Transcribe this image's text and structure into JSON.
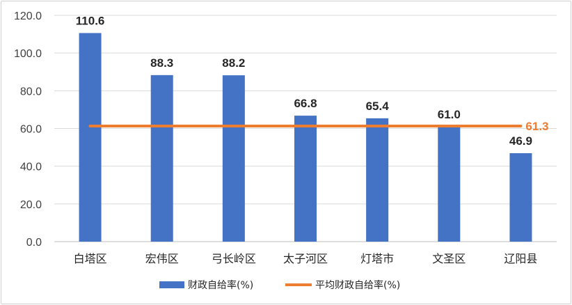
{
  "chart_data": {
    "type": "bar",
    "categories": [
      "白塔区",
      "宏伟区",
      "弓长岭区",
      "太子河区",
      "灯塔市",
      "文圣区",
      "辽阳县"
    ],
    "series": [
      {
        "name": "财政自给率(%)",
        "type": "bar",
        "color": "#4472C4",
        "values": [
          110.6,
          88.3,
          88.2,
          66.8,
          65.4,
          61.0,
          46.9
        ],
        "labels": [
          "110.6",
          "88.3",
          "88.2",
          "66.8",
          "65.4",
          "61.0",
          "46.9"
        ]
      },
      {
        "name": "平均财政自给率(%)",
        "type": "line",
        "color": "#ED7D31",
        "value": 61.3,
        "label": "61.3"
      }
    ],
    "ylim": [
      0,
      120
    ],
    "yticks": [
      "0.0",
      "20.0",
      "40.0",
      "60.0",
      "80.0",
      "100.0",
      "120.0"
    ],
    "grid": true,
    "legend_position": "bottom"
  }
}
